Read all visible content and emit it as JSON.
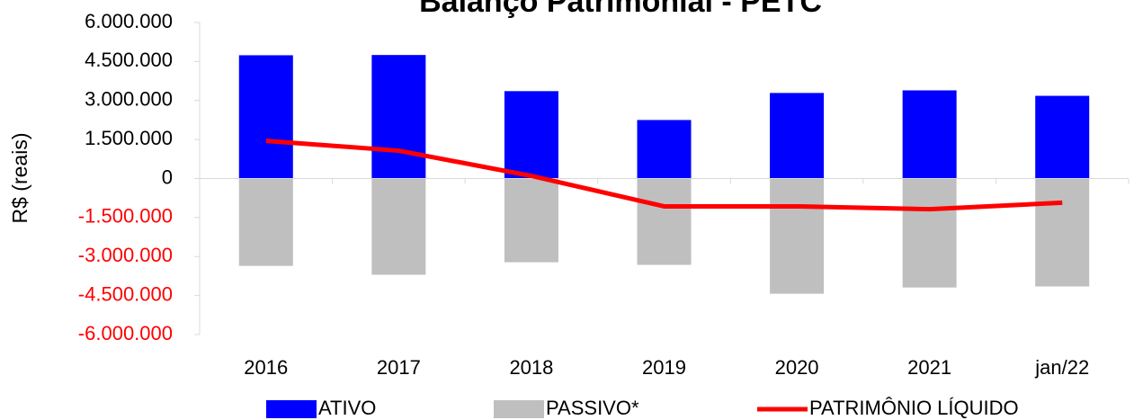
{
  "chart_data": {
    "type": "bar",
    "title": "Balanço Patrimonial - PETC",
    "ylabel": "R$ (reais)",
    "categories": [
      "2016",
      "2017",
      "2018",
      "2019",
      "2020",
      "2021",
      "jan/22"
    ],
    "series": [
      {
        "name": "ATIVO",
        "type": "bar",
        "color": "#0000ff",
        "values": [
          4740000,
          4750000,
          3360000,
          2250000,
          3290000,
          3390000,
          3180000
        ]
      },
      {
        "name": "PASSIVO*",
        "type": "bar",
        "color": "#bfbfbf",
        "values": [
          -3360000,
          -3700000,
          -3220000,
          -3320000,
          -4430000,
          -4190000,
          -4150000
        ]
      },
      {
        "name": "PATRIMÔNIO LÍQUIDO",
        "type": "line",
        "color": "#ff0000",
        "values": [
          1450000,
          1070000,
          100000,
          -1070000,
          -1070000,
          -1180000,
          -930000
        ]
      }
    ],
    "ylim": [
      -6000000,
      6000000
    ],
    "yticks": [
      {
        "value": -6000000,
        "label": "-6.000.000"
      },
      {
        "value": -4500000,
        "label": "-4.500.000"
      },
      {
        "value": -3000000,
        "label": "-3.000.000"
      },
      {
        "value": -1500000,
        "label": "-1.500.000"
      },
      0,
      {
        "value": 1500000,
        "label": "1.500.000"
      },
      {
        "value": 3000000,
        "label": "3.000.000"
      },
      {
        "value": 4500000,
        "label": "4.500.000"
      },
      {
        "value": 6000000,
        "label": "6.000.000"
      }
    ],
    "negative_tick_color": "#ff0000",
    "legend": "bottom"
  }
}
